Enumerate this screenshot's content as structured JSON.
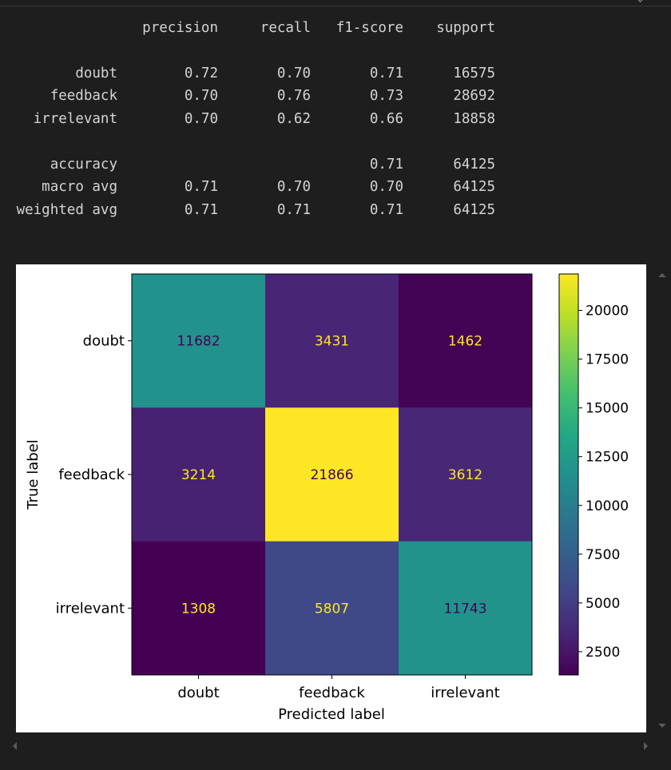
{
  "report": {
    "header": [
      "precision",
      "recall",
      "f1-score",
      "support"
    ],
    "rows": [
      {
        "label": "doubt",
        "precision": "0.72",
        "recall": "0.70",
        "f1": "0.71",
        "support": "16575"
      },
      {
        "label": "feedback",
        "precision": "0.70",
        "recall": "0.76",
        "f1": "0.73",
        "support": "28692"
      },
      {
        "label": "irrelevant",
        "precision": "0.70",
        "recall": "0.62",
        "f1": "0.66",
        "support": "18858"
      }
    ],
    "summary": [
      {
        "label": "accuracy",
        "precision": "",
        "recall": "",
        "f1": "0.71",
        "support": "64125"
      },
      {
        "label": "macro avg",
        "precision": "0.71",
        "recall": "0.70",
        "f1": "0.70",
        "support": "64125"
      },
      {
        "label": "weighted avg",
        "precision": "0.71",
        "recall": "0.71",
        "f1": "0.71",
        "support": "64125"
      }
    ]
  },
  "chart_data": {
    "type": "heatmap",
    "title": "",
    "xlabel": "Predicted label",
    "ylabel": "True label",
    "x_categories": [
      "doubt",
      "feedback",
      "irrelevant"
    ],
    "y_categories": [
      "doubt",
      "feedback",
      "irrelevant"
    ],
    "values": [
      [
        11682,
        3431,
        1462
      ],
      [
        3214,
        21866,
        3612
      ],
      [
        1308,
        5807,
        11743
      ]
    ],
    "colormap": "viridis",
    "colorbar": {
      "range": [
        1308,
        21866
      ],
      "ticks": [
        2500,
        5000,
        7500,
        10000,
        12500,
        15000,
        17500,
        20000
      ]
    },
    "text_colors": {
      "light": "#fde725",
      "dark": "#440154"
    }
  }
}
